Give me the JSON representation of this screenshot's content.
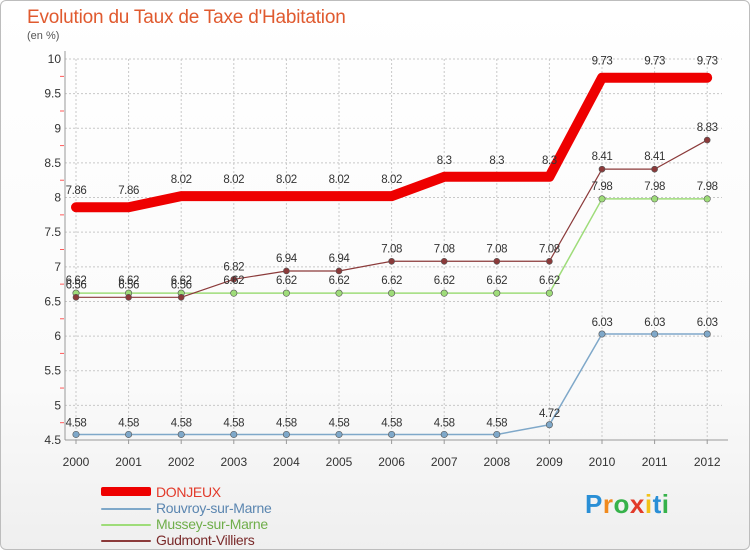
{
  "title": "Evolution du Taux de Taxe d'Habitation",
  "unit": "(en %)",
  "logo": {
    "text": "Proxiti",
    "letters": [
      "P",
      "r",
      "o",
      "x",
      "i",
      "t",
      "i"
    ],
    "colors": [
      "#2a8fd6",
      "#f08a1e",
      "#36b24a",
      "#e23b2a",
      "#f2c218",
      "#2a8fd6",
      "#36b24a"
    ]
  },
  "chart_data": {
    "type": "line",
    "title": "Evolution du Taux de Taxe d'Habitation",
    "ylabel": "(en %)",
    "xlabel": "",
    "ylim": [
      4.5,
      10
    ],
    "yticks": [
      "4.5",
      "5",
      "5.5",
      "6",
      "6.5",
      "7",
      "7.5",
      "8",
      "8.5",
      "9",
      "9.5",
      "10"
    ],
    "categories": [
      "2000",
      "2001",
      "2002",
      "2003",
      "2004",
      "2005",
      "2006",
      "2007",
      "2008",
      "2009",
      "2010",
      "2011",
      "2012"
    ],
    "grid": true,
    "legend_position": "bottom-left",
    "series": [
      {
        "name": "DONJEUX",
        "color": "#ee0000",
        "values": [
          7.86,
          7.86,
          8.02,
          8.02,
          8.02,
          8.02,
          8.02,
          8.3,
          8.3,
          8.3,
          9.73,
          9.73,
          9.73
        ],
        "labels": [
          "7.86",
          "7.86",
          "8.02",
          "8.02",
          "8.02",
          "8.02",
          "8.02",
          "8.3",
          "8.3",
          "8.3",
          "9.73",
          "9.73",
          "9.73"
        ]
      },
      {
        "name": "Rouvroy-sur-Marne",
        "color": "#7fa8c9",
        "values": [
          4.58,
          4.58,
          4.58,
          4.58,
          4.58,
          4.58,
          4.58,
          4.58,
          4.58,
          4.72,
          6.03,
          6.03,
          6.03
        ],
        "labels": [
          "4.58",
          "4.58",
          "4.58",
          "4.58",
          "4.58",
          "4.58",
          "4.58",
          "4.58",
          "4.58",
          "4.72",
          "6.03",
          "6.03",
          "6.03"
        ]
      },
      {
        "name": "Mussey-sur-Marne",
        "color": "#9edc79",
        "values": [
          6.62,
          6.62,
          6.62,
          6.62,
          6.62,
          6.62,
          6.62,
          6.62,
          6.62,
          6.62,
          7.98,
          7.98,
          7.98
        ],
        "labels": [
          "6.62",
          "6.62",
          "6.62",
          "6.62",
          "6.62",
          "6.62",
          "6.62",
          "6.62",
          "6.62",
          "6.62",
          "7.98",
          "7.98",
          "7.98"
        ]
      },
      {
        "name": "Gudmont-Villiers",
        "color": "#8b3a3a",
        "values": [
          6.56,
          6.56,
          6.56,
          6.82,
          6.94,
          6.94,
          7.08,
          7.08,
          7.08,
          7.08,
          8.41,
          8.41,
          8.83
        ],
        "labels": [
          "6.56",
          "6.56",
          "6.56",
          "6.82",
          "6.94",
          "6.94",
          "7.08",
          "7.08",
          "7.08",
          "7.08",
          "8.41",
          "8.41",
          "8.83"
        ]
      }
    ]
  }
}
